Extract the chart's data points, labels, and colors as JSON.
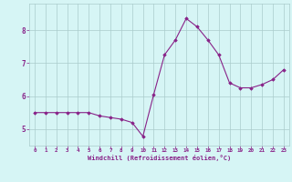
{
  "x": [
    0,
    1,
    2,
    3,
    4,
    5,
    6,
    7,
    8,
    9,
    10,
    11,
    12,
    13,
    14,
    15,
    16,
    17,
    18,
    19,
    20,
    21,
    22,
    23
  ],
  "y": [
    5.5,
    5.5,
    5.5,
    5.5,
    5.5,
    5.5,
    5.4,
    5.35,
    5.3,
    5.2,
    4.78,
    6.05,
    7.25,
    7.7,
    8.35,
    8.1,
    7.7,
    7.25,
    6.4,
    6.25,
    6.25,
    6.35,
    6.5,
    6.8
  ],
  "line_color": "#882288",
  "marker": "D",
  "markersize": 1.8,
  "linewidth": 0.8,
  "bg_color": "#d6f5f5",
  "grid_color": "#aacccc",
  "xlabel": "Windchill (Refroidissement éolien,°C)",
  "xlabel_color": "#882288",
  "tick_color": "#882288",
  "ylim": [
    4.5,
    8.8
  ],
  "xlim": [
    -0.5,
    23.5
  ],
  "yticks": [
    5,
    6,
    7,
    8
  ],
  "xticks": [
    0,
    1,
    2,
    3,
    4,
    5,
    6,
    7,
    8,
    9,
    10,
    11,
    12,
    13,
    14,
    15,
    16,
    17,
    18,
    19,
    20,
    21,
    22,
    23
  ]
}
